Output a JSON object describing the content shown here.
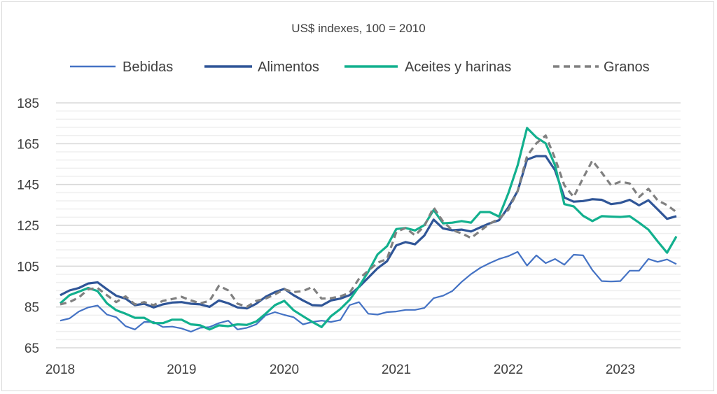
{
  "chart_data": {
    "type": "line",
    "title": "US$ indexes, 100 = 2010",
    "xlabel": "",
    "ylabel": "",
    "ylim": [
      65,
      185
    ],
    "y_ticks": [
      65,
      85,
      105,
      125,
      145,
      165,
      185
    ],
    "y_minor_step": 4,
    "grid": true,
    "legend_position": "top",
    "x_ticks": [
      {
        "label": "2018",
        "index": 0
      },
      {
        "label": "2019",
        "index": 13
      },
      {
        "label": "2020",
        "index": 24
      },
      {
        "label": "2021",
        "index": 36
      },
      {
        "label": "2022",
        "index": 48
      },
      {
        "label": "2023",
        "index": 60
      }
    ],
    "series": [
      {
        "name": "Bebidas",
        "color": "#4472C4",
        "dashed": false,
        "values": [
          78.3,
          79.4,
          82.8,
          84.8,
          85.7,
          81.3,
          80,
          75.6,
          74,
          77.7,
          77.7,
          75.2,
          75.4,
          74.5,
          72.9,
          74.8,
          75.2,
          77.1,
          78.3,
          74,
          74.8,
          76.5,
          80.9,
          82.5,
          81.1,
          80,
          76.5,
          77.7,
          78.3,
          77.7,
          78.6,
          85.9,
          87.4,
          81.7,
          81.3,
          82.5,
          82.8,
          83.6,
          83.6,
          84.5,
          89.3,
          90.5,
          92.8,
          97.3,
          101.1,
          104.2,
          106.5,
          108.5,
          109.9,
          112,
          105.3,
          110.3,
          106.5,
          108.5,
          105.7,
          110.6,
          110.3,
          103.1,
          97.7,
          97.5,
          97.7,
          102.8,
          102.8,
          108.5,
          107.1,
          108.3,
          106
        ]
      },
      {
        "name": "Alimentos",
        "color": "#2F5597",
        "dashed": false,
        "values": [
          90.8,
          93.1,
          94.3,
          96.5,
          97.1,
          93.7,
          90.5,
          89.1,
          85.9,
          86.6,
          84.8,
          86.3,
          87.2,
          87.4,
          86.6,
          86.3,
          85.1,
          88.2,
          86.8,
          84.8,
          84.3,
          86.6,
          90,
          92.3,
          93.9,
          90.8,
          88.2,
          85.9,
          85.7,
          88.2,
          89.1,
          90.8,
          94.8,
          99.4,
          104,
          107.4,
          115.2,
          116.8,
          115.7,
          120,
          127.8,
          123.5,
          122.6,
          122.9,
          122,
          124,
          126,
          127.5,
          133.8,
          141.8,
          157.2,
          158.9,
          158.9,
          152,
          138.6,
          136.6,
          136.9,
          137.8,
          137.5,
          135.4,
          136,
          137.5,
          134.8,
          137.3,
          132.8,
          128.2,
          129.5
        ]
      },
      {
        "name": "Aceites y harinas",
        "color": "#12B08E",
        "dashed": false,
        "values": [
          86.8,
          90.8,
          92.5,
          94.3,
          92.8,
          86.8,
          83.4,
          81.7,
          79.7,
          79.7,
          77.1,
          77.1,
          78.8,
          78.8,
          76.5,
          76,
          74,
          76,
          75.6,
          76.5,
          76.2,
          77.9,
          81.7,
          85.9,
          88,
          83.4,
          80.5,
          77.7,
          75.2,
          80.5,
          84,
          88.5,
          95,
          102.3,
          110.8,
          114.8,
          123.2,
          123.7,
          122.5,
          125.1,
          132.5,
          126,
          126.3,
          127.1,
          126.3,
          131.5,
          131.5,
          129.3,
          140.7,
          154.4,
          172.7,
          168.1,
          165.2,
          154.4,
          135.4,
          134.3,
          129.7,
          127.1,
          129.5,
          129.3,
          129.1,
          129.5,
          126.3,
          122.9,
          117.1,
          111.6,
          119.6
        ]
      },
      {
        "name": "Granos",
        "color": "#808080",
        "dashed": true,
        "values": [
          86.3,
          87.4,
          89.7,
          93.7,
          94.3,
          90.8,
          87.4,
          90.2,
          86.3,
          87.4,
          85.9,
          88,
          88.9,
          90,
          88.2,
          86.8,
          88,
          95.4,
          93.1,
          86.6,
          85.1,
          88,
          89.1,
          91.2,
          93.7,
          92.3,
          92.8,
          94.8,
          89.1,
          89.3,
          90.2,
          92,
          98.8,
          102.8,
          106.7,
          108.5,
          121.8,
          123.7,
          120.1,
          124.6,
          133.8,
          126.9,
          122.6,
          121.1,
          118.8,
          122.3,
          125.8,
          128.2,
          132.6,
          141.8,
          158.9,
          165.2,
          169,
          157.8,
          144.6,
          138.9,
          148.1,
          156.7,
          150.9,
          144.6,
          146.4,
          145.5,
          138.9,
          142.9,
          137.2,
          134.9,
          131.5
        ]
      }
    ]
  }
}
